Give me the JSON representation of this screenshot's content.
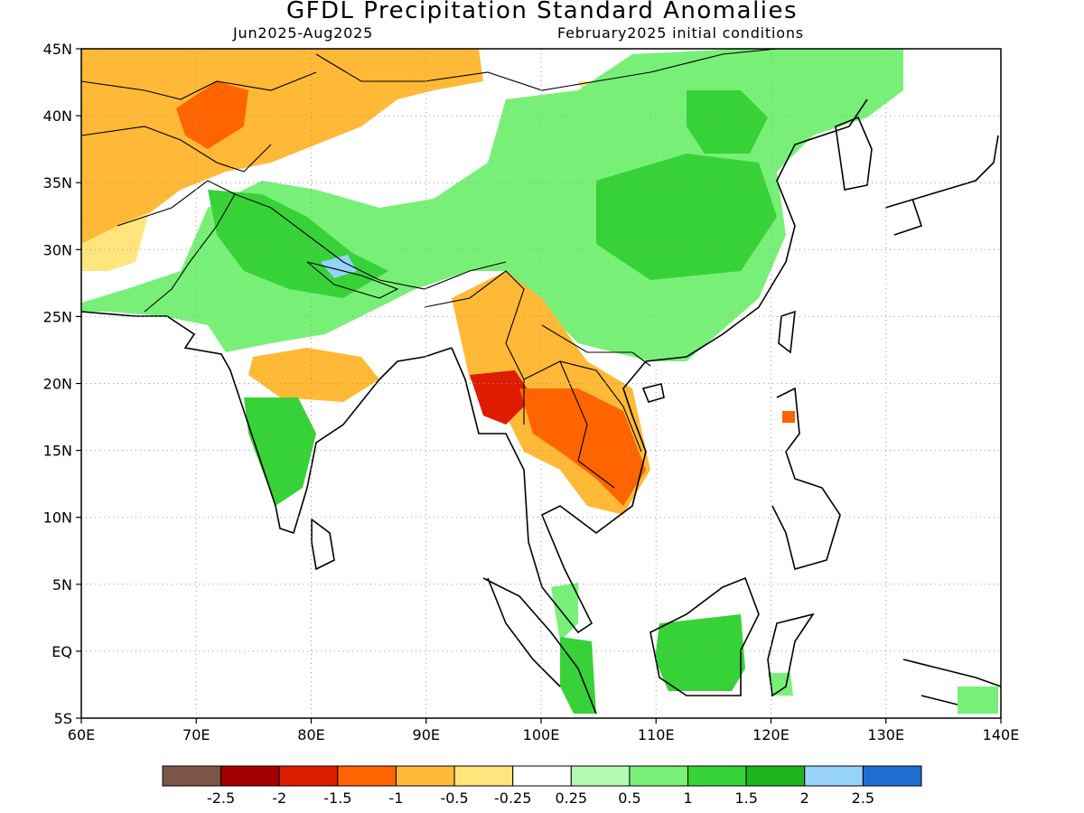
{
  "title": "GFDL Precipitation Standard Anomalies",
  "period": "Jun2025-Aug2025",
  "init": "February2025 initial conditions",
  "map": {
    "lon_range": [
      60,
      140
    ],
    "lat_range": [
      -5,
      45
    ],
    "lon_ticks": [
      {
        "value": 60,
        "label": "60E"
      },
      {
        "value": 70,
        "label": "70E"
      },
      {
        "value": 80,
        "label": "80E"
      },
      {
        "value": 90,
        "label": "90E"
      },
      {
        "value": 100,
        "label": "100E"
      },
      {
        "value": 110,
        "label": "110E"
      },
      {
        "value": 120,
        "label": "120E"
      },
      {
        "value": 130,
        "label": "130E"
      },
      {
        "value": 140,
        "label": "140E"
      }
    ],
    "lat_ticks": [
      {
        "value": 45,
        "label": "45N"
      },
      {
        "value": 40,
        "label": "40N"
      },
      {
        "value": 35,
        "label": "35N"
      },
      {
        "value": 30,
        "label": "30N"
      },
      {
        "value": 25,
        "label": "25N"
      },
      {
        "value": 20,
        "label": "20N"
      },
      {
        "value": 15,
        "label": "15N"
      },
      {
        "value": 10,
        "label": "10N"
      },
      {
        "value": 5,
        "label": "5N"
      },
      {
        "value": 0,
        "label": "EQ"
      },
      {
        "value": -5,
        "label": "5S"
      }
    ],
    "grid": true
  },
  "colorbar": {
    "colors": [
      "#7a5548",
      "#a50000",
      "#dd1c00",
      "#ff6400",
      "#ffb936",
      "#ffe57c",
      "#ffffff",
      "#b4fab4",
      "#78f078",
      "#37d237",
      "#1eb41e",
      "#96d2fa",
      "#1e6ed2"
    ],
    "labels": [
      "-2.5",
      "-2",
      "-1.5",
      "-1",
      "-0.5",
      "-0.25",
      "0.25",
      "0.5",
      "1",
      "1.5",
      "2",
      "2.5"
    ]
  }
}
